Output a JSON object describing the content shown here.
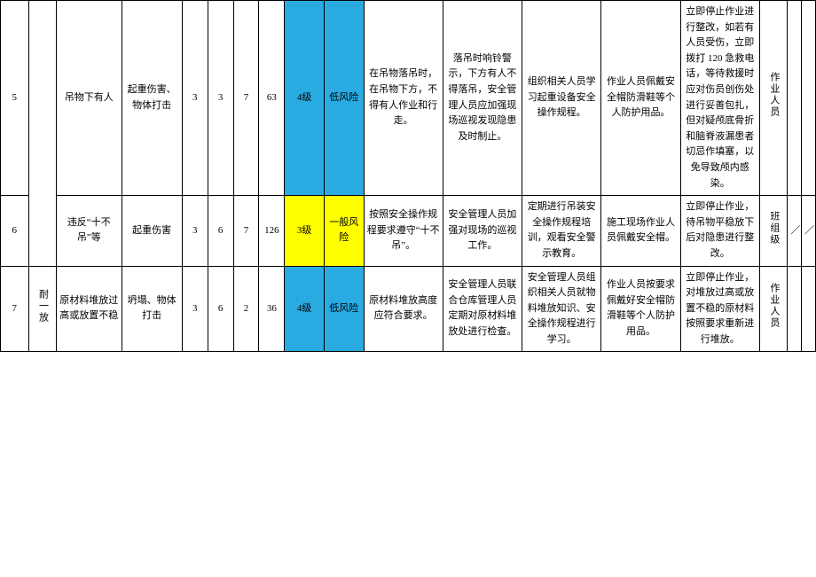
{
  "colors": {
    "blue": "#29abe2",
    "yellow": "#ffff00",
    "border": "#000000",
    "background": "#ffffff",
    "text": "#000000"
  },
  "font": {
    "family": "SimSun",
    "size_pt": 11,
    "line_height": 1.6
  },
  "rows": [
    {
      "num": "5",
      "category": "",
      "hazard": "吊物下有人",
      "type": "起重伤害、物体打击",
      "L": "3",
      "E": "3",
      "C": "7",
      "D": "63",
      "level": "4级",
      "level_bg": "blue",
      "risk": "低风险",
      "risk_bg": "blue",
      "c1": "在吊物落吊时，在吊物下方，不得有人作业和行走。",
      "c2": "落吊时响铃警示，下方有人不得落吊，安全管理人员应加强现场巡视发现隐患及时制止。",
      "c3": "组织相关人员学习起重设备安全操作规程。",
      "c4": "作业人员佩戴安全帽防滑鞋等个人防护用品。",
      "c5": "立即停止作业进行整改，如若有人员受伤，立即拨打 120 急救电话，等待救援时应对伤员创伤处进行妥善包扎，但对疑颅底骨折和脑脊液漏患者切忌作填塞，以免导致颅内感染。",
      "resp": "作业人员",
      "analysis": "",
      "flag": ""
    },
    {
      "num": "6",
      "category": "",
      "hazard": "违反“十不吊”等",
      "type": "起重伤害",
      "L": "3",
      "E": "6",
      "C": "7",
      "D": "126",
      "level": "3级",
      "level_bg": "yellow",
      "risk": "一般风险",
      "risk_bg": "yellow",
      "c1": "按照安全操作规程要求遵守“十不吊”。",
      "c2": "安全管理人员加强对现场的巡视工作。",
      "c3": "定期进行吊装安全操作规程培训，观看安全警示教育。",
      "c4": "施工现场作业人员佩戴安全帽。",
      "c5": "立即停止作业，待吊物平稳放下后对隐患进行整改。",
      "resp": "班组级",
      "analysis": "／",
      "flag": "／"
    },
    {
      "num": "7",
      "category": "耐一放",
      "hazard": "原材料堆放过高或放置不稳",
      "type": "坍塌、物体打击",
      "L": "3",
      "E": "6",
      "C": "2",
      "D": "36",
      "level": "4级",
      "level_bg": "blue",
      "risk": "低风险",
      "risk_bg": "blue",
      "c1": "原材料堆放高度应符合要求。",
      "c2": "安全管理人员联合仓库管理人员定期对原材料堆放处进行检查。",
      "c3": "安全管理人员组织相关人员就物料堆放知识、安全操作规程进行学习。",
      "c4": "作业人员按要求佩戴好安全帽防滑鞋等个人防护用品。",
      "c5": "立即停止作业，对堆放过高或放置不稳的原材料按照要求重新进行堆放。",
      "resp": "作业人员",
      "analysis": "",
      "flag": ""
    }
  ]
}
